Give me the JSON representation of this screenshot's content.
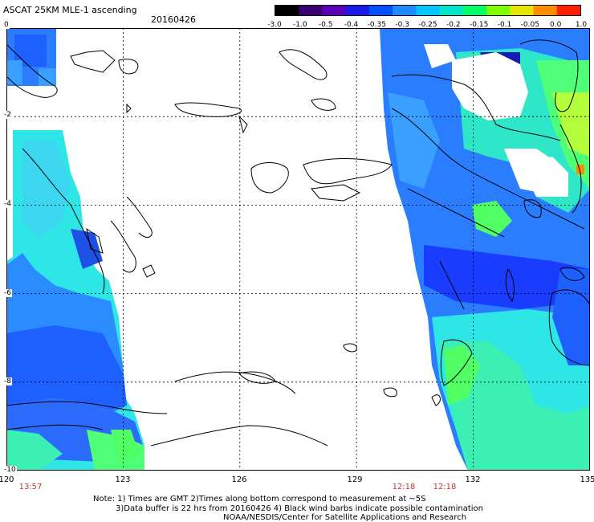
{
  "header": {
    "title": "ASCAT 25KM MLE-1 ascending",
    "date": "20160426"
  },
  "colorbar": {
    "labels": [
      "-3.0",
      "-1.0",
      "-0.5",
      "-0.4",
      "-0.35",
      "-0.3",
      "-0.25",
      "-0.2",
      "-0.15",
      "-0.1",
      "-0.05",
      "0.0",
      "1.0"
    ],
    "colors": [
      "#000000",
      "#3b0070",
      "#5a00b8",
      "#1a1ae6",
      "#0050ff",
      "#1e8cff",
      "#00c8ff",
      "#00e6c8",
      "#00ff64",
      "#7dff00",
      "#e6e600",
      "#ff8c00",
      "#ff2000"
    ]
  },
  "axes": {
    "x_ticks": [
      "120",
      "123",
      "126",
      "129",
      "132",
      "135"
    ],
    "y_ticks": [
      "0",
      "-2",
      "-4",
      "-6",
      "-8",
      "-10"
    ]
  },
  "time_labels": [
    "13:57",
    "12:18",
    "12:18"
  ],
  "notes": {
    "line1": "Note: 1) Times are GMT 2)Times along bottom correspond to measurement at ~5S",
    "line2": "3)Data buffer is 22 hrs from 20160426 4) Black wind barbs indicate possible contamination",
    "line3": "NOAA/NESDIS/Center for Satellite Applications and Research"
  },
  "palette": {
    "deep_blue": "#1a3cff",
    "blue": "#2b6cff",
    "light_blue": "#3aa0ff",
    "cyan": "#2ee6e6",
    "teal": "#3cf0b4",
    "green": "#50ff78",
    "yellow_green": "#b4ff3c",
    "orange": "#ff8c00",
    "coast": "#000000"
  }
}
